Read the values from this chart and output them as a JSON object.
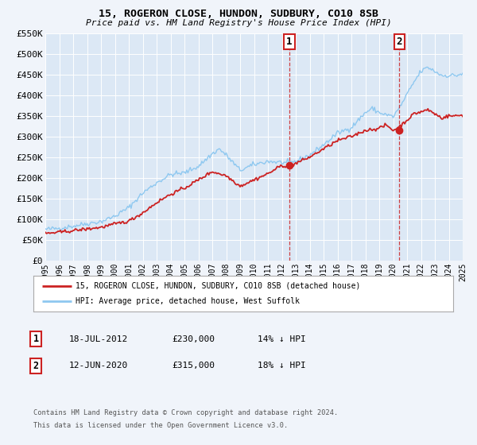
{
  "title": "15, ROGERON CLOSE, HUNDON, SUDBURY, CO10 8SB",
  "subtitle": "Price paid vs. HM Land Registry's House Price Index (HPI)",
  "hpi_color": "#8ec8f0",
  "price_color": "#cc2222",
  "background_color": "#f0f4fa",
  "plot_bg_color": "#dce8f5",
  "grid_color": "#ffffff",
  "ylim": [
    0,
    550000
  ],
  "yticks": [
    0,
    50000,
    100000,
    150000,
    200000,
    250000,
    300000,
    350000,
    400000,
    450000,
    500000,
    550000
  ],
  "ytick_labels": [
    "£0",
    "£50K",
    "£100K",
    "£150K",
    "£200K",
    "£250K",
    "£300K",
    "£350K",
    "£400K",
    "£450K",
    "£500K",
    "£550K"
  ],
  "annotation1": {
    "date_x": 2012.54,
    "price": 230000,
    "label": "1",
    "text_date": "18-JUL-2012",
    "text_price": "£230,000",
    "text_pct": "14% ↓ HPI"
  },
  "annotation2": {
    "date_x": 2020.45,
    "price": 315000,
    "label": "2",
    "text_date": "12-JUN-2020",
    "text_price": "£315,000",
    "text_pct": "18% ↓ HPI"
  },
  "legend_label1": "15, ROGERON CLOSE, HUNDON, SUDBURY, CO10 8SB (detached house)",
  "legend_label2": "HPI: Average price, detached house, West Suffolk",
  "footer1": "Contains HM Land Registry data © Crown copyright and database right 2024.",
  "footer2": "This data is licensed under the Open Government Licence v3.0.",
  "xlim": [
    1995,
    2025
  ],
  "xticks": [
    1995,
    1996,
    1997,
    1998,
    1999,
    2000,
    2001,
    2002,
    2003,
    2004,
    2005,
    2006,
    2007,
    2008,
    2009,
    2010,
    2011,
    2012,
    2013,
    2014,
    2015,
    2016,
    2017,
    2018,
    2019,
    2020,
    2021,
    2022,
    2023,
    2024,
    2025
  ]
}
